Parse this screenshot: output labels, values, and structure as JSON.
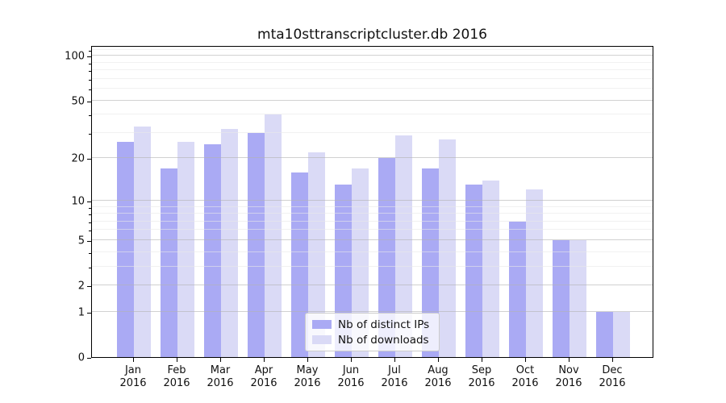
{
  "chart_data": {
    "type": "bar",
    "title": "mta10sttranscriptcluster.db 2016",
    "categories": [
      "Jan 2016",
      "Feb 2016",
      "Mar 2016",
      "Apr 2016",
      "May 2016",
      "Jun 2016",
      "Jul 2016",
      "Aug 2016",
      "Sep 2016",
      "Oct 2016",
      "Nov 2016",
      "Dec 2016"
    ],
    "series": [
      {
        "name": "Nb of distinct IPs",
        "color": "#aaaaf4",
        "values": [
          26,
          17,
          25,
          30,
          16,
          13,
          20,
          17,
          13,
          7,
          5,
          1
        ]
      },
      {
        "name": "Nb of downloads",
        "color": "#dadaf6",
        "values": [
          33,
          26,
          32,
          40,
          22,
          17,
          29,
          27,
          14,
          12,
          5,
          1
        ]
      }
    ],
    "xlabel": "",
    "ylabel": "",
    "y_scale": "log1p",
    "y_ticks_labeled": [
      0,
      1,
      2,
      5,
      10,
      20,
      50,
      100
    ],
    "y_ticks_minor": [
      3,
      4,
      6,
      7,
      8,
      9,
      30,
      40,
      60,
      70,
      80,
      90,
      110
    ],
    "ylim": [
      0,
      118
    ],
    "grid": "horizontal",
    "legend_position": "lower center"
  },
  "legend": {
    "items": [
      {
        "label": "Nb of distinct IPs",
        "color": "#aaaaf4"
      },
      {
        "label": "Nb of downloads",
        "color": "#dadaf6"
      }
    ]
  },
  "colors": {
    "major_grid": "#b3b3b3",
    "minor_grid": "#e9e9e9",
    "axis": "#000000",
    "text": "#111111"
  }
}
